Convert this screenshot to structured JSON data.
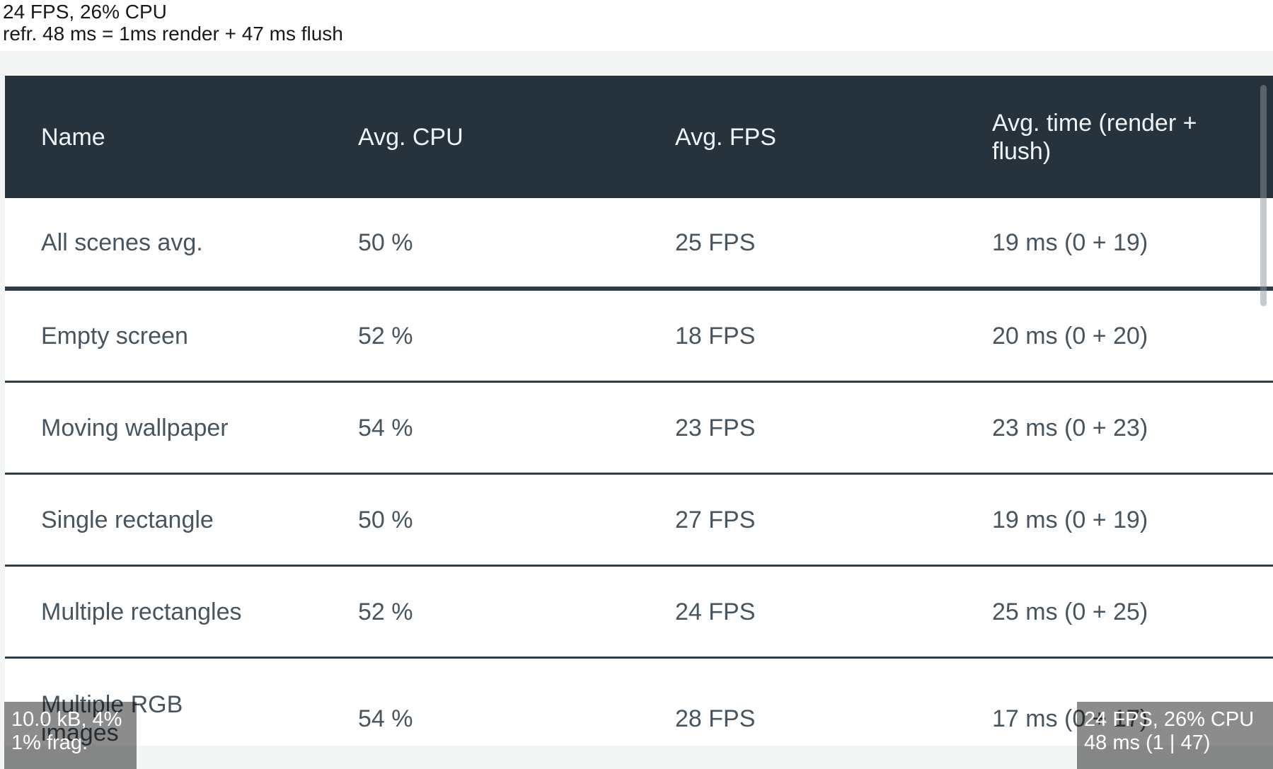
{
  "top_perf_label": {
    "line1": "24 FPS, 26% CPU",
    "line2": "refr. 48 ms = 1ms render + 47 ms flush"
  },
  "table": {
    "columns": [
      "Name",
      "Avg. CPU",
      "Avg. FPS",
      "Avg. time (render + flush)"
    ],
    "rows": [
      {
        "name": "All scenes avg.",
        "cpu": "50 %",
        "fps": "25 FPS",
        "time": "19 ms (0 + 19)"
      },
      {
        "name": "Empty screen",
        "cpu": "52 %",
        "fps": "18 FPS",
        "time": "20 ms (0 + 20)"
      },
      {
        "name": "Moving wallpaper",
        "cpu": "54 %",
        "fps": "23 FPS",
        "time": "23 ms (0 + 23)"
      },
      {
        "name": "Single rectangle",
        "cpu": "50 %",
        "fps": "27 FPS",
        "time": "19 ms (0 + 19)"
      },
      {
        "name": "Multiple rectangles",
        "cpu": "52 %",
        "fps": "24 FPS",
        "time": "25 ms (0 + 25)"
      },
      {
        "name": "Multiple RGB images",
        "cpu": "54 %",
        "fps": "28 FPS",
        "time": "17 ms (0 + 17)"
      }
    ]
  },
  "overlays": {
    "memory": {
      "line1": "10.0 kB, 4%",
      "line2": "1% frag."
    },
    "performance": {
      "line1": "24 FPS, 26% CPU",
      "line2": "48 ms (1 | 47)"
    }
  },
  "colors": {
    "header_bg": "#27333c",
    "header_text": "#f0f4f6",
    "row_text": "#465560",
    "row_divider": "#2e3d47",
    "page_panel_bg": "#f3f4f4",
    "overlay_bg": "rgba(0,0,0,0.45)",
    "overlay_text": "#ffffff",
    "scrollbar": "rgba(140,150,155,0.5)"
  }
}
